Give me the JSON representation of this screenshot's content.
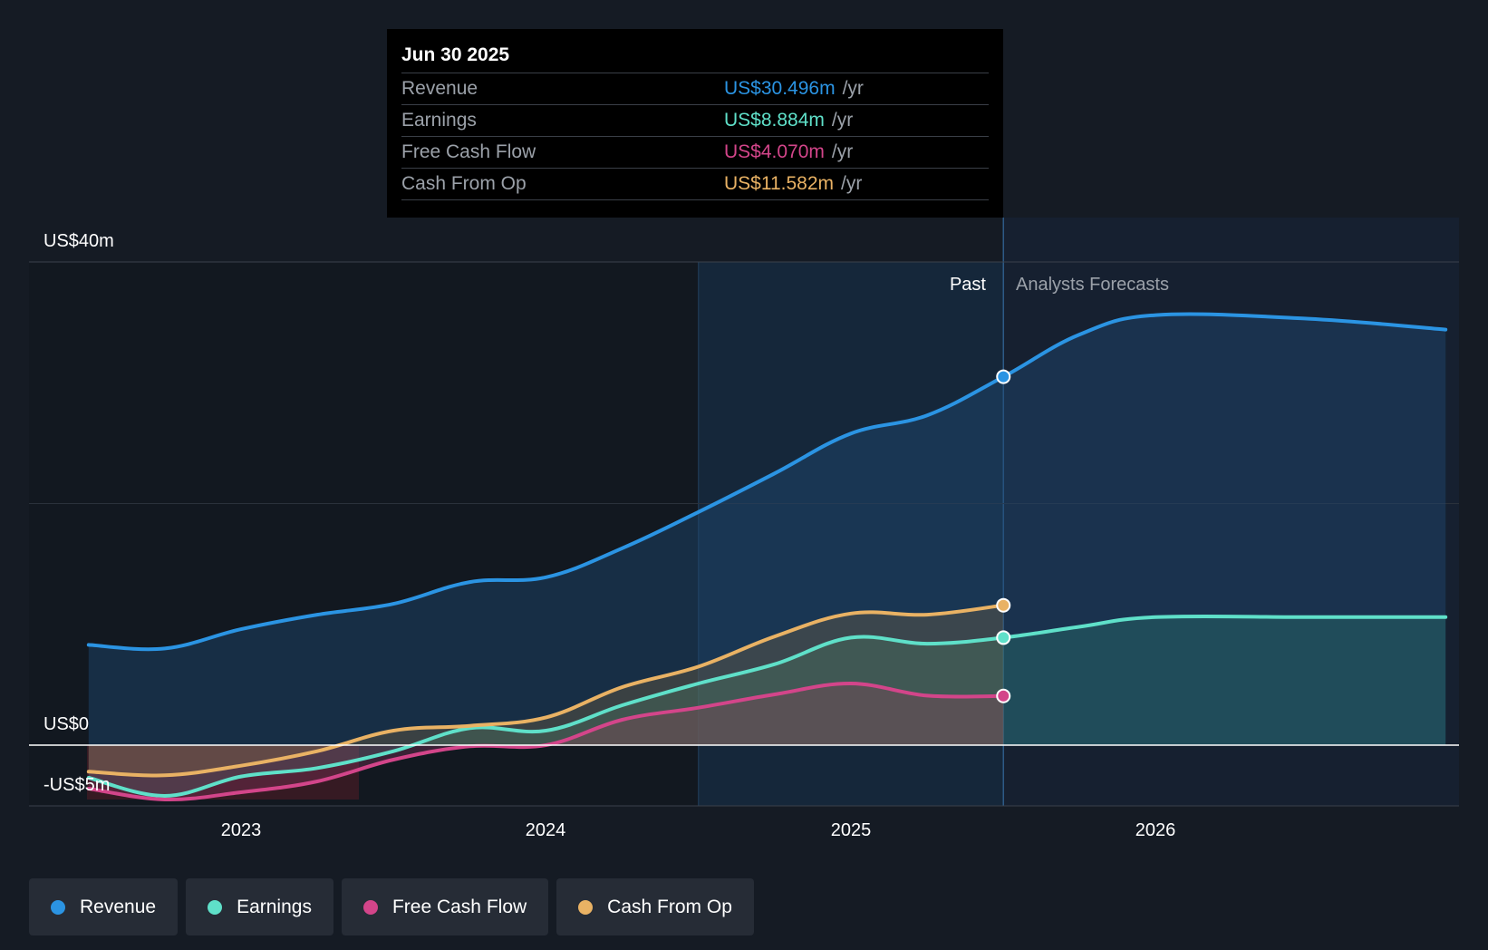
{
  "chart_data": {
    "type": "area",
    "y_unit": "US$ m",
    "ylim": [
      -5,
      40
    ],
    "y_labels": [
      {
        "value": 40,
        "label": "US$40m"
      },
      {
        "value": 0,
        "label": "US$0"
      },
      {
        "value": -5,
        "label": "-US$5m"
      }
    ],
    "x_range": [
      2022.5,
      2026.95
    ],
    "x_ticks": [
      {
        "value": 2023,
        "label": "2023"
      },
      {
        "value": 2024,
        "label": "2024"
      },
      {
        "value": 2025,
        "label": "2025"
      },
      {
        "value": 2026,
        "label": "2026"
      }
    ],
    "past_label": "Past",
    "forecast_label": "Analysts Forecasts",
    "past_end": 2025.5,
    "highlight_start": 2024.5,
    "series": [
      {
        "name": "Revenue",
        "color": "#2b94e3",
        "x": [
          2022.5,
          2022.75,
          2023.0,
          2023.25,
          2023.5,
          2023.75,
          2024.0,
          2024.25,
          2024.5,
          2024.75,
          2025.0,
          2025.25,
          2025.5,
          2025.75,
          2026.0,
          2026.5,
          2026.95
        ],
        "values": [
          8.3,
          8.0,
          9.6,
          10.8,
          11.7,
          13.5,
          13.9,
          16.3,
          19.3,
          22.5,
          25.8,
          27.3,
          30.5,
          34.0,
          35.6,
          35.3,
          34.4
        ],
        "forecast_from_index": 12
      },
      {
        "name": "Earnings",
        "color": "#5fe0c9",
        "x": [
          2022.5,
          2022.75,
          2023.0,
          2023.25,
          2023.5,
          2023.75,
          2024.0,
          2024.25,
          2024.5,
          2024.75,
          2025.0,
          2025.25,
          2025.5,
          2025.75,
          2026.0,
          2026.5,
          2026.95
        ],
        "values": [
          -2.7,
          -4.2,
          -2.6,
          -1.9,
          -0.5,
          1.4,
          1.2,
          3.3,
          5.1,
          6.7,
          8.9,
          8.4,
          8.9,
          9.8,
          10.6,
          10.6,
          10.6
        ],
        "forecast_from_index": 12
      },
      {
        "name": "Free Cash Flow",
        "color": "#d3458a",
        "x": [
          2022.5,
          2022.75,
          2023.0,
          2023.25,
          2023.5,
          2023.75,
          2024.0,
          2024.25,
          2024.5,
          2024.75,
          2025.0,
          2025.25,
          2025.5
        ],
        "values": [
          -3.6,
          -4.5,
          -3.9,
          -3.0,
          -1.2,
          -0.1,
          0.0,
          2.1,
          3.1,
          4.2,
          5.1,
          4.1,
          4.07
        ],
        "forecast_from_index": 13
      },
      {
        "name": "Cash From Op",
        "color": "#e9b264",
        "x": [
          2022.5,
          2022.75,
          2023.0,
          2023.25,
          2023.5,
          2023.75,
          2024.0,
          2024.25,
          2024.5,
          2024.75,
          2025.0,
          2025.25,
          2025.5
        ],
        "values": [
          -2.2,
          -2.5,
          -1.7,
          -0.5,
          1.2,
          1.6,
          2.3,
          4.8,
          6.5,
          9.0,
          10.9,
          10.8,
          11.58
        ],
        "forecast_from_index": 13
      }
    ]
  },
  "tooltip": {
    "date": "Jun 30 2025",
    "rows": [
      {
        "label": "Revenue",
        "value": "US$30.496m",
        "unit": "/yr",
        "color": "#2b94e3"
      },
      {
        "label": "Earnings",
        "value": "US$8.884m",
        "unit": "/yr",
        "color": "#5fe0c9"
      },
      {
        "label": "Free Cash Flow",
        "value": "US$4.070m",
        "unit": "/yr",
        "color": "#d3458a"
      },
      {
        "label": "Cash From Op",
        "value": "US$11.582m",
        "unit": "/yr",
        "color": "#e9b264"
      }
    ]
  },
  "legend": [
    {
      "label": "Revenue",
      "color": "#2b94e3"
    },
    {
      "label": "Earnings",
      "color": "#5fe0c9"
    },
    {
      "label": "Free Cash Flow",
      "color": "#d3458a"
    },
    {
      "label": "Cash From Op",
      "color": "#e9b264"
    }
  ]
}
